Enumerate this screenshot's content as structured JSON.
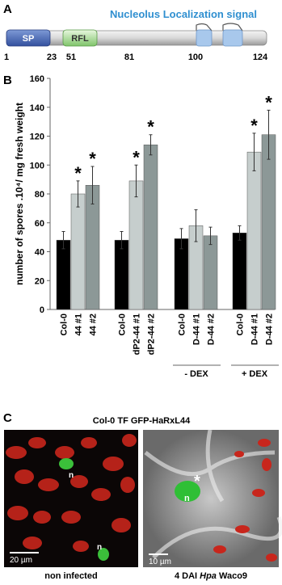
{
  "panel_a": {
    "label": "A",
    "title": "Nucleolus Localization signal",
    "domains": [
      "SP",
      "RFL"
    ],
    "positions": [
      1,
      23,
      51,
      81,
      100,
      124
    ]
  },
  "chart_data": {
    "type": "bar",
    "label": "B",
    "ylabel": "number of spores .10⁴/ mg fresh weight",
    "categories": [
      "Col-0",
      "44 #1",
      "44 #2",
      "Col-0",
      "dP2-44 #1",
      "dP2-44 #2",
      "Col-0",
      "D-44 #1",
      "D-44 #2",
      "Col-0",
      "D-44 #1",
      "D-44 #2"
    ],
    "values": [
      48,
      80,
      86,
      48,
      89,
      114,
      49,
      58,
      51,
      53,
      109,
      121
    ],
    "errors": [
      6,
      9,
      13,
      6,
      11,
      7,
      7,
      11,
      6,
      5,
      13,
      17
    ],
    "colors": [
      "#000000",
      "#c6cecd",
      "#8c9897",
      "#000000",
      "#c6cecd",
      "#8c9897",
      "#000000",
      "#c6cecd",
      "#8c9897",
      "#000000",
      "#c6cecd",
      "#8c9897"
    ],
    "significance_marker": "*",
    "significant": [
      false,
      true,
      true,
      false,
      true,
      true,
      false,
      false,
      false,
      false,
      true,
      true
    ],
    "treatment_labels": [
      "- DEX",
      "+ DEX"
    ],
    "ylim": [
      0,
      160
    ],
    "yticks": [
      0,
      20,
      40,
      60,
      80,
      100,
      120,
      140,
      160
    ]
  },
  "panel_c": {
    "label": "C",
    "title": "Col-0 TF GFP-HaRxL44",
    "nucleus_label": "n",
    "stain_marker": "*",
    "scale_bars": [
      "20 µm",
      "10 µm"
    ],
    "captions": [
      [
        "non infected"
      ],
      [
        "4 DAI ",
        "Hpa",
        " Waco9"
      ]
    ]
  }
}
